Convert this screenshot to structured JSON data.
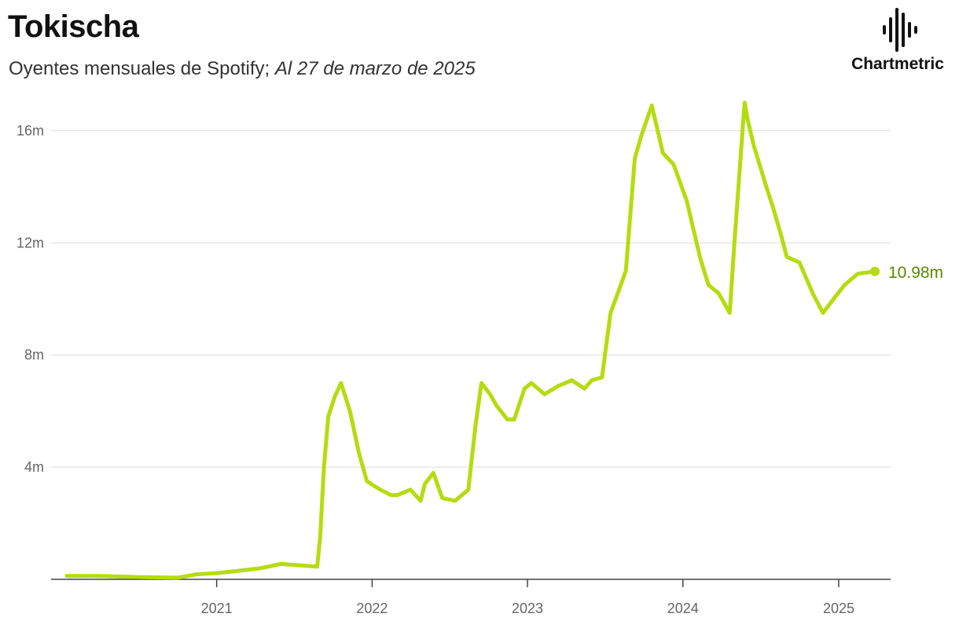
{
  "header": {
    "title": "Tokischa",
    "subtitle_main": "Oyentes mensuales de Spotify; ",
    "subtitle_date": "Al 27 de marzo de 2025"
  },
  "logo": {
    "text": "Chartmetric",
    "icon": "soundwave-bars-icon"
  },
  "chart_data": {
    "type": "line",
    "title": "Tokischa",
    "ylabel": "",
    "xlabel": "",
    "y_unit": "millions",
    "ylim": [
      0,
      17.3
    ],
    "x_range": [
      "2020-01-15",
      "2025-03-27"
    ],
    "grid": true,
    "legend": "none",
    "line_color": "#b5dc10",
    "label_color": "#5a8a00",
    "y_ticks": [
      {
        "value": 4,
        "label": "4m"
      },
      {
        "value": 8,
        "label": "8m"
      },
      {
        "value": 12,
        "label": "12m"
      },
      {
        "value": 16,
        "label": "16m"
      }
    ],
    "x_ticks": [
      {
        "value": "2021-01-01",
        "label": "2021"
      },
      {
        "value": "2022-01-01",
        "label": "2022"
      },
      {
        "value": "2023-01-01",
        "label": "2023"
      },
      {
        "value": "2024-01-01",
        "label": "2024"
      },
      {
        "value": "2025-01-01",
        "label": "2025"
      }
    ],
    "last_value_label": "10.98m",
    "series": [
      {
        "values": [
          [
            "2020-01-15",
            0.12
          ],
          [
            "2020-04-01",
            0.12
          ],
          [
            "2020-07-01",
            0.08
          ],
          [
            "2020-10-01",
            0.06
          ],
          [
            "2020-11-15",
            0.18
          ],
          [
            "2021-01-01",
            0.22
          ],
          [
            "2021-03-01",
            0.32
          ],
          [
            "2021-04-15",
            0.4
          ],
          [
            "2021-06-01",
            0.55
          ],
          [
            "2021-07-15",
            0.5
          ],
          [
            "2021-08-25",
            0.45
          ],
          [
            "2021-09-01",
            1.5
          ],
          [
            "2021-09-10",
            4.0
          ],
          [
            "2021-09-20",
            5.8
          ],
          [
            "2021-10-05",
            6.5
          ],
          [
            "2021-10-20",
            7.0
          ],
          [
            "2021-11-10",
            6.0
          ],
          [
            "2021-12-01",
            4.5
          ],
          [
            "2021-12-20",
            3.5
          ],
          [
            "2022-01-20",
            3.2
          ],
          [
            "2022-02-15",
            3.0
          ],
          [
            "2022-03-01",
            3.0
          ],
          [
            "2022-04-01",
            3.2
          ],
          [
            "2022-04-25",
            2.8
          ],
          [
            "2022-05-05",
            3.4
          ],
          [
            "2022-05-25",
            3.8
          ],
          [
            "2022-06-15",
            2.9
          ],
          [
            "2022-07-15",
            2.8
          ],
          [
            "2022-08-15",
            3.2
          ],
          [
            "2022-09-01",
            5.5
          ],
          [
            "2022-09-15",
            7.0
          ],
          [
            "2022-10-05",
            6.6
          ],
          [
            "2022-10-20",
            6.2
          ],
          [
            "2022-11-15",
            5.7
          ],
          [
            "2022-12-01",
            5.7
          ],
          [
            "2022-12-25",
            6.8
          ],
          [
            "2023-01-10",
            7.0
          ],
          [
            "2023-02-10",
            6.6
          ],
          [
            "2023-03-15",
            6.9
          ],
          [
            "2023-04-15",
            7.1
          ],
          [
            "2023-05-15",
            6.8
          ],
          [
            "2023-06-01",
            7.1
          ],
          [
            "2023-06-25",
            7.2
          ],
          [
            "2023-07-15",
            9.5
          ],
          [
            "2023-08-01",
            10.2
          ],
          [
            "2023-08-20",
            11.0
          ],
          [
            "2023-09-10",
            15.0
          ],
          [
            "2023-09-25",
            15.8
          ],
          [
            "2023-10-20",
            16.9
          ],
          [
            "2023-11-15",
            15.2
          ],
          [
            "2023-12-10",
            14.8
          ],
          [
            "2024-01-10",
            13.5
          ],
          [
            "2024-02-10",
            11.5
          ],
          [
            "2024-03-01",
            10.5
          ],
          [
            "2024-03-25",
            10.2
          ],
          [
            "2024-04-20",
            9.5
          ],
          [
            "2024-05-01",
            12.0
          ],
          [
            "2024-05-20",
            16.0
          ],
          [
            "2024-05-25",
            17.0
          ],
          [
            "2024-06-01",
            16.4
          ],
          [
            "2024-06-15",
            15.5
          ],
          [
            "2024-07-15",
            14.0
          ],
          [
            "2024-08-01",
            13.2
          ],
          [
            "2024-08-20",
            12.2
          ],
          [
            "2024-09-01",
            11.5
          ],
          [
            "2024-10-01",
            11.3
          ],
          [
            "2024-11-01",
            10.2
          ],
          [
            "2024-11-25",
            9.5
          ],
          [
            "2024-12-20",
            10.0
          ],
          [
            "2025-01-15",
            10.5
          ],
          [
            "2025-02-15",
            10.9
          ],
          [
            "2025-03-27",
            10.98
          ]
        ]
      }
    ]
  }
}
